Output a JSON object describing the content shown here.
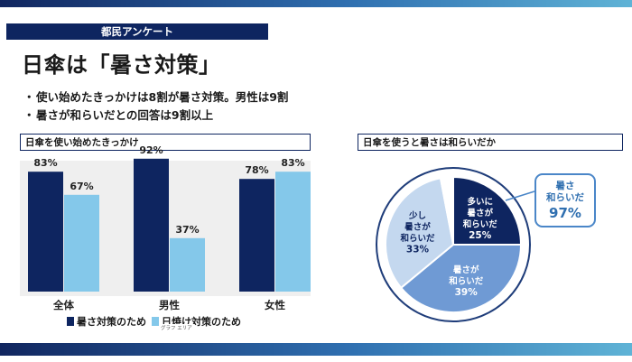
{
  "header": {
    "tag": "都民アンケート",
    "title": "日傘は「暑さ対策」",
    "bullets": [
      "使い始めたきっかけは8割が暑さ対策。男性は9割",
      "暑さが和らいだとの回答は9割以上"
    ]
  },
  "colors": {
    "navy": "#0e2560",
    "light_blue": "#84c8ea",
    "accent": "#2f6fb0"
  },
  "chart_data": [
    {
      "type": "bar",
      "title": "日傘を使い始めたきっかけ",
      "categories": [
        "全体",
        "男性",
        "女性"
      ],
      "series": [
        {
          "name": "暑さ対策のため",
          "color": "#0e2560",
          "values": [
            83,
            92,
            78
          ]
        },
        {
          "name": "日焼け対策のため",
          "color": "#84c8ea",
          "values": [
            67,
            37,
            83
          ]
        }
      ],
      "value_labels": [
        [
          "83%",
          "92%",
          "78%"
        ],
        [
          "67%",
          "37%",
          "83%"
        ]
      ],
      "ylim": [
        0,
        100
      ],
      "legend": "bottom",
      "note": "グラフ エリア"
    },
    {
      "type": "pie",
      "title": "日傘を使うと暑さは和らいだか",
      "slices": [
        {
          "label_lines": [
            "多いに",
            "暑さが",
            "和らいだ"
          ],
          "value": 25,
          "value_label": "25%",
          "color": "#0e2560",
          "text_color": "#ffffff"
        },
        {
          "label_lines": [
            "暑さが",
            "和らいだ"
          ],
          "value": 39,
          "value_label": "39%",
          "color": "#6f9ad4",
          "text_color": "#ffffff"
        },
        {
          "label_lines": [
            "少し",
            "暑さが",
            "和らいだ"
          ],
          "value": 33,
          "value_label": "33%",
          "color": "#c4d8ef",
          "text_color": "#0e2560"
        },
        {
          "label_lines": [],
          "value": 3,
          "value_label": "",
          "color": "#ffffff",
          "text_color": "#0e2560"
        }
      ],
      "callout": {
        "label_lines": [
          "暑さ",
          "和らいだ"
        ],
        "value_label": "97%"
      }
    }
  ]
}
